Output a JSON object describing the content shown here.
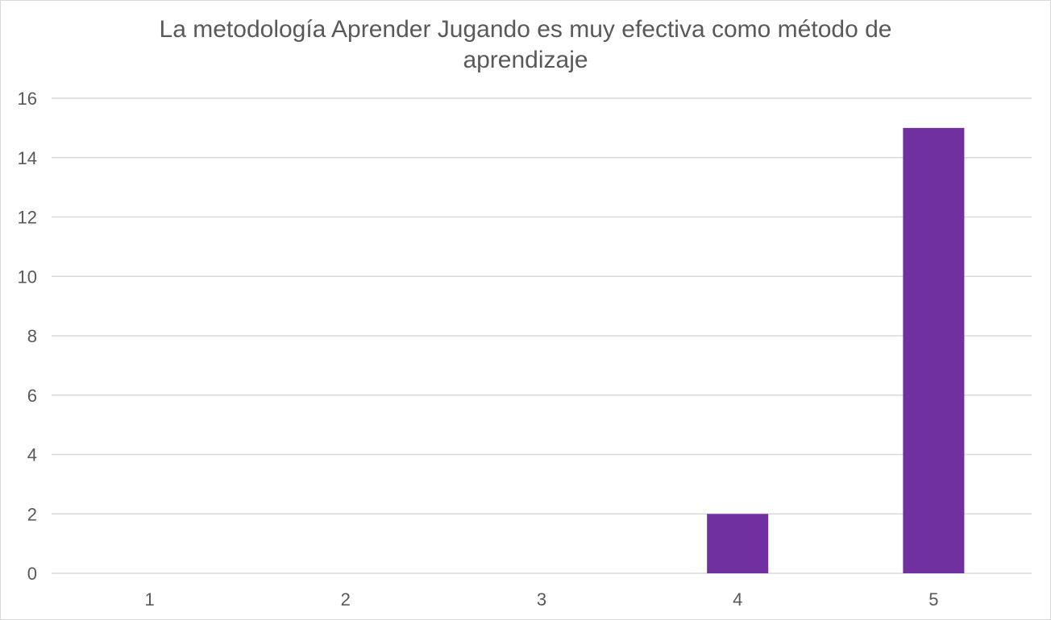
{
  "chart_data": {
    "type": "bar",
    "title": "La metodología Aprender Jugando es muy efectiva como método de aprendizaje",
    "title_lines": [
      "La metodología Aprender Jugando es muy efectiva como método de",
      "aprendizaje"
    ],
    "categories": [
      "1",
      "2",
      "3",
      "4",
      "5"
    ],
    "values": [
      0,
      0,
      0,
      2,
      15
    ],
    "xlabel": "",
    "ylabel": "",
    "ylim": [
      0,
      16
    ],
    "yticks": [
      0,
      2,
      4,
      6,
      8,
      10,
      12,
      14,
      16
    ],
    "grid": true,
    "legend": "none",
    "bar_color": "#7030a0",
    "grid_color": "#d9d9d9",
    "text_color": "#595959"
  }
}
